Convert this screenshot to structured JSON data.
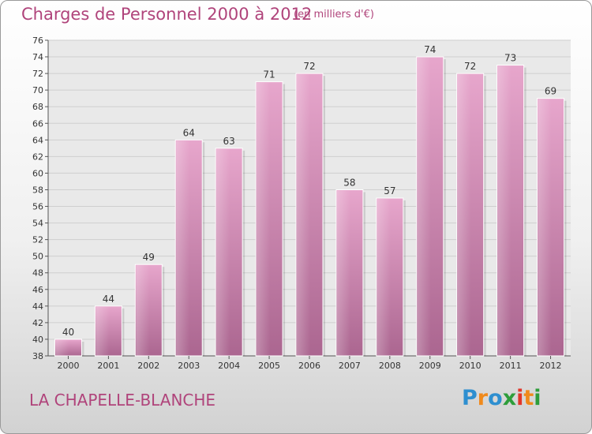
{
  "header": {
    "title": "Charges de Personnel 2000 à 2012",
    "subtitle": "(en milliers d'€)"
  },
  "footer": {
    "commune": "LA CHAPELLE-BLANCHE",
    "logo_text": "Proxiti"
  },
  "colors": {
    "accent": "#b0447b",
    "bar": "#d183b0",
    "logo_letters": [
      "#2e8fd0",
      "#f08a1c",
      "#2e8fd0",
      "#2e9d3a",
      "#e2362a",
      "#f08a1c",
      "#2e9d3a"
    ]
  },
  "chart_data": {
    "type": "bar",
    "categories": [
      "2000",
      "2001",
      "2002",
      "2003",
      "2004",
      "2005",
      "2006",
      "2007",
      "2008",
      "2009",
      "2010",
      "2011",
      "2012"
    ],
    "values": [
      40,
      44,
      49,
      64,
      63,
      71,
      72,
      58,
      57,
      74,
      72,
      73,
      69
    ],
    "ylim": [
      38,
      76
    ],
    "yticks": [
      38,
      40,
      42,
      44,
      46,
      48,
      50,
      52,
      54,
      56,
      58,
      60,
      62,
      64,
      66,
      68,
      70,
      72,
      74,
      76
    ],
    "grid": true,
    "xlabel": "",
    "ylabel": ""
  }
}
